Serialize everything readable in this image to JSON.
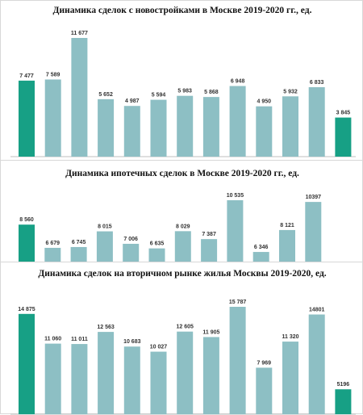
{
  "colors": {
    "teal": "#17a085",
    "steel": "#8dbfc4",
    "axis": "#bfbfbf"
  },
  "chart_data": [
    {
      "type": "bar",
      "title": "Динамика сделок с новостройками в Москве 2019-2020 гг., ед.",
      "values": [
        7477,
        7589,
        11677,
        5652,
        4987,
        5594,
        5983,
        5868,
        6948,
        4950,
        5932,
        6833,
        3845
      ],
      "labels": [
        "7 477",
        "7 589",
        "11 677",
        "5 652",
        "4 987",
        "5 594",
        "5 983",
        "5 868",
        "6 948",
        "4 950",
        "5 932",
        "6 833",
        "3 845"
      ],
      "highlight": [
        0,
        12
      ],
      "ylim": [
        0,
        12200
      ],
      "grid": false
    },
    {
      "type": "bar",
      "title": "Динамика ипотечных сделок в Москве 2019-2020 гг., ед.",
      "values": [
        8560,
        6679,
        6745,
        8015,
        7006,
        6635,
        8029,
        7387,
        10535,
        6346,
        8121,
        10397
      ],
      "labels": [
        "8 560",
        "6 679",
        "6 745",
        "8 015",
        "7 006",
        "6 635",
        "8 029",
        "7 387",
        "10 535",
        "6 346",
        "8 121",
        "10397"
      ],
      "highlight": [
        0
      ],
      "ylim": [
        5500,
        10800
      ],
      "grid": false
    },
    {
      "type": "bar",
      "title": "Динамика сделок на вторичном рынке жилья Москвы 2019-2020, ед.",
      "values": [
        14875,
        11060,
        11011,
        12563,
        10683,
        10027,
        12605,
        11905,
        15787,
        7969,
        11320,
        14801,
        5196
      ],
      "labels": [
        "14 875",
        "11 060",
        "11 011",
        "12 563",
        "10 683",
        "10 027",
        "12 605",
        "11 905",
        "15 787",
        "7 969",
        "11 320",
        "14801",
        "5196"
      ],
      "highlight": [
        0,
        12
      ],
      "ylim": [
        2000,
        16200
      ],
      "grid": false
    }
  ]
}
